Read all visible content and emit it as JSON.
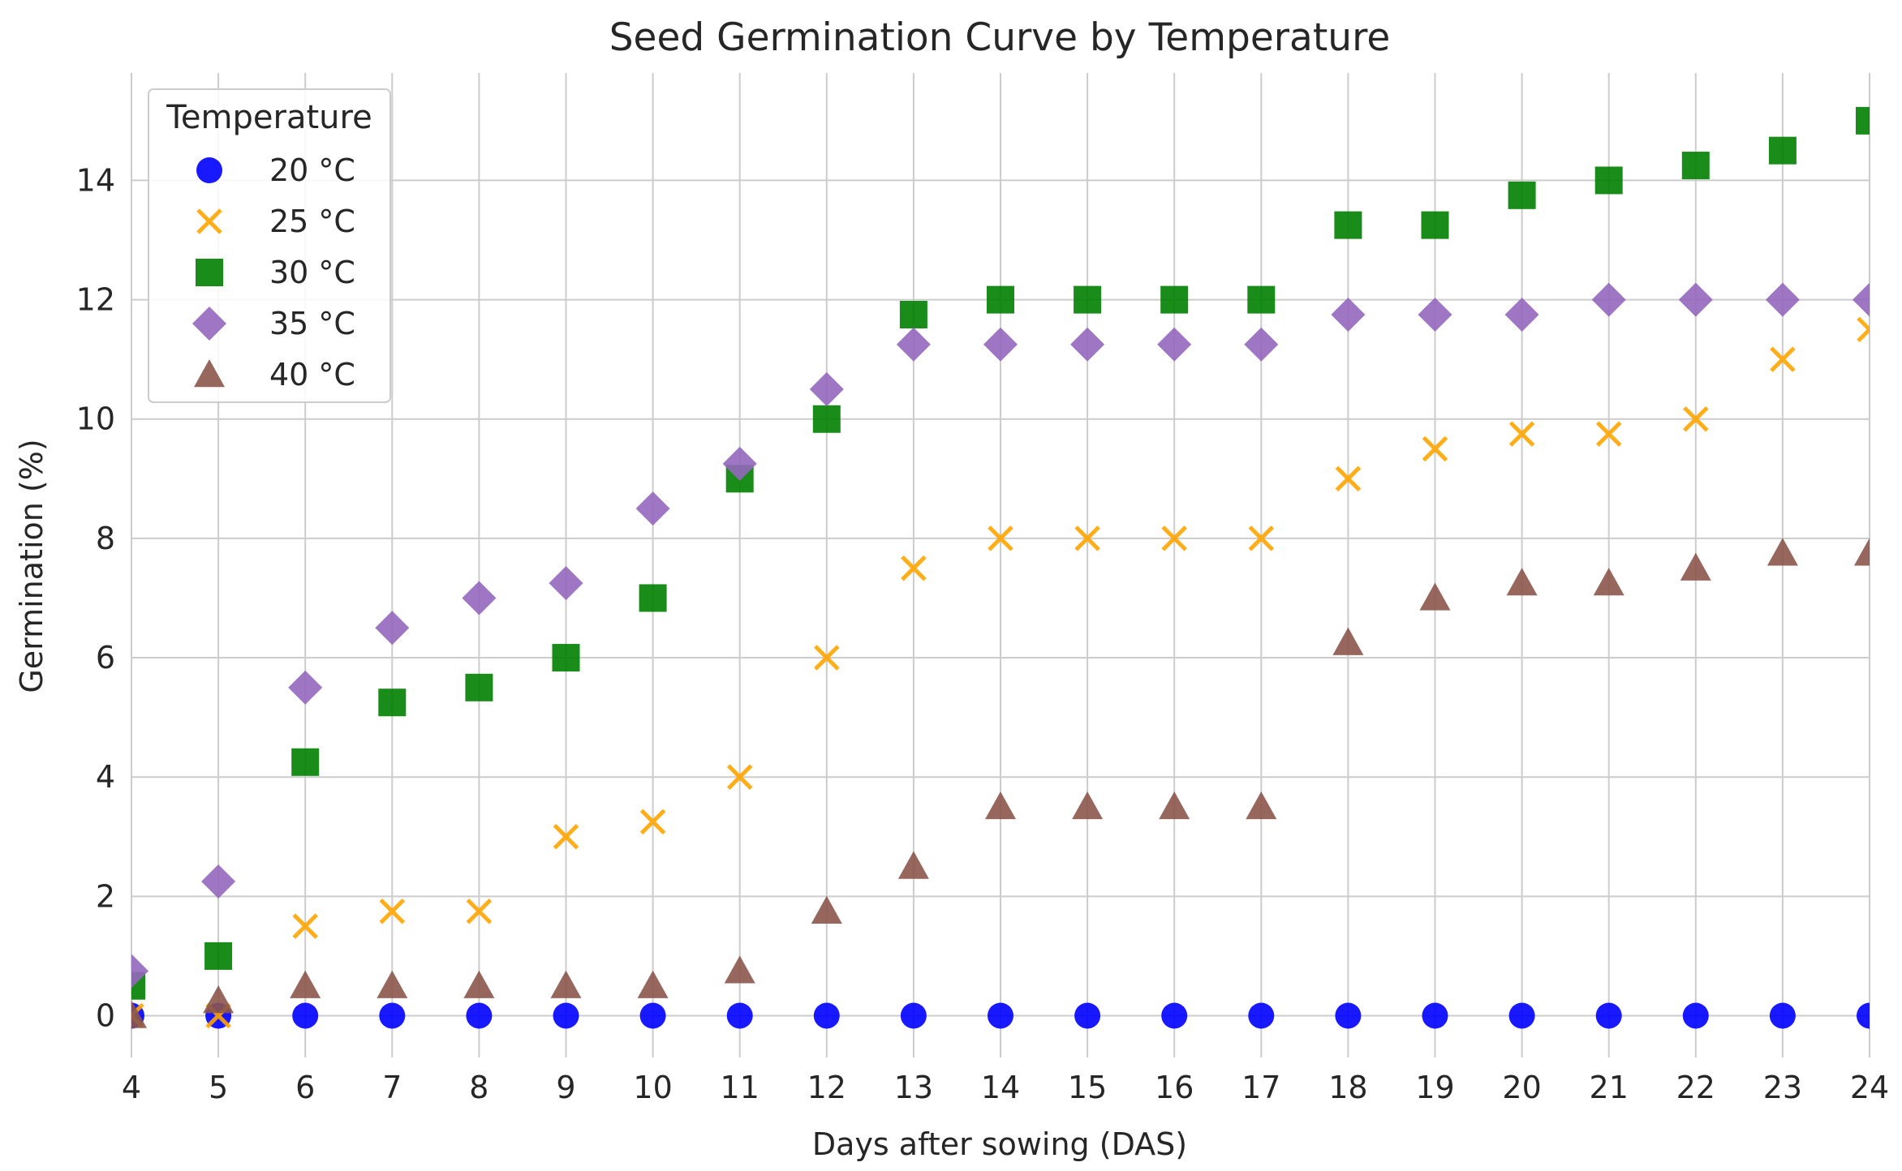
{
  "chart_data": {
    "type": "scatter",
    "title": "Seed Germination Curve by Temperature",
    "xlabel": "Days after sowing (DAS)",
    "ylabel": "Germination (%)",
    "xlim": [
      4,
      24
    ],
    "ylim": [
      -0.7,
      15.8
    ],
    "xticks": [
      4,
      5,
      6,
      7,
      8,
      9,
      10,
      11,
      12,
      13,
      14,
      15,
      16,
      17,
      18,
      19,
      20,
      21,
      22,
      23,
      24
    ],
    "yticks": [
      0,
      2,
      4,
      6,
      8,
      10,
      12,
      14
    ],
    "grid": true,
    "legend": {
      "title": "Temperature",
      "position": "top-left"
    },
    "x": [
      4,
      5,
      6,
      7,
      8,
      9,
      10,
      11,
      12,
      13,
      14,
      15,
      16,
      17,
      18,
      19,
      20,
      21,
      22,
      23,
      24
    ],
    "series": [
      {
        "name": "20 °C",
        "marker": "circle",
        "color": "#0000ff",
        "values": [
          0,
          0,
          0,
          0,
          0,
          0,
          0,
          0,
          0,
          0,
          0,
          0,
          0,
          0,
          0,
          0,
          0,
          0,
          0,
          0,
          0
        ]
      },
      {
        "name": "25 °C",
        "marker": "x",
        "color": "#ffa500",
        "values": [
          0,
          0,
          1.5,
          1.75,
          1.75,
          3,
          3.25,
          4,
          6,
          7.5,
          8,
          8,
          8,
          8,
          9,
          9.5,
          9.75,
          9.75,
          10,
          11,
          11.5
        ]
      },
      {
        "name": "30 °C",
        "marker": "square",
        "color": "#008000",
        "values": [
          0.5,
          1,
          4.25,
          5.25,
          5.5,
          6,
          7,
          9,
          10,
          11.75,
          12,
          12,
          12,
          12,
          13.25,
          13.25,
          13.75,
          14,
          14.25,
          14.5,
          15
        ]
      },
      {
        "name": "35 °C",
        "marker": "diamond",
        "color": "#9467bd",
        "values": [
          0.75,
          2.25,
          5.5,
          6.5,
          7,
          7.25,
          8.5,
          9.25,
          10.5,
          11.25,
          11.25,
          11.25,
          11.25,
          11.25,
          11.75,
          11.75,
          11.75,
          12,
          12,
          12,
          12
        ]
      },
      {
        "name": "40 °C",
        "marker": "triangle",
        "color": "#8c564b",
        "values": [
          0,
          0.25,
          0.5,
          0.5,
          0.5,
          0.5,
          0.5,
          0.75,
          1.75,
          2.5,
          3.5,
          3.5,
          3.5,
          3.5,
          6.25,
          7,
          7.25,
          7.25,
          7.5,
          7.75,
          7.75
        ]
      }
    ]
  }
}
